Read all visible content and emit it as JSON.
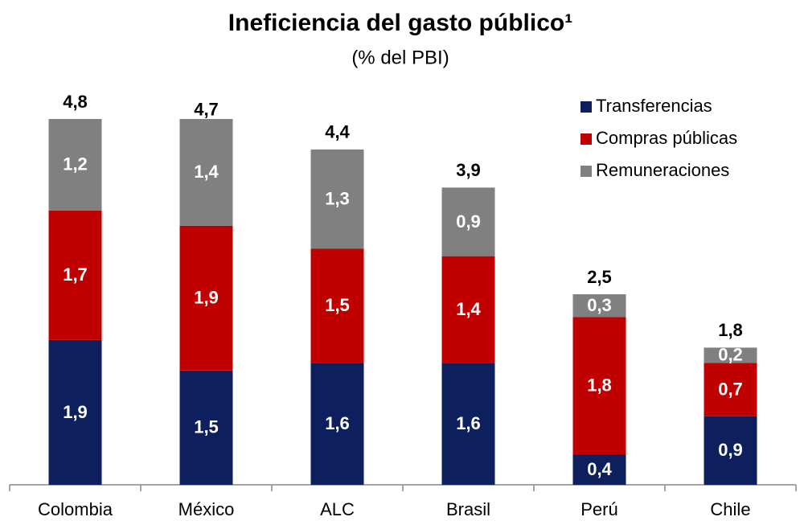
{
  "chart_data": {
    "type": "stacked-bar",
    "title": "Ineficiencia del gasto público¹",
    "subtitle": "(% del PBI)",
    "categories": [
      "Colombia",
      "México",
      "ALC",
      "Brasil",
      "Perú",
      "Chile"
    ],
    "series": [
      {
        "name": "Transferencias",
        "color": "#0d1f5c",
        "values": [
          1.9,
          1.5,
          1.6,
          1.6,
          0.4,
          0.9
        ],
        "value_labels": [
          "1,9",
          "1,5",
          "1,6",
          "1,6",
          "0,4",
          "0,9"
        ]
      },
      {
        "name": "Compras públicas",
        "color": "#c00000",
        "values": [
          1.7,
          1.9,
          1.5,
          1.4,
          1.8,
          0.7
        ],
        "value_labels": [
          "1,7",
          "1,9",
          "1,5",
          "1,4",
          "1,8",
          "0,7"
        ]
      },
      {
        "name": "Remuneraciones",
        "color": "#808080",
        "values": [
          1.2,
          1.4,
          1.3,
          0.9,
          0.3,
          0.2
        ],
        "value_labels": [
          "1,2",
          "1,4",
          "1,3",
          "0,9",
          "0,3",
          "0,2"
        ]
      }
    ],
    "totals": {
      "values": [
        4.8,
        4.7,
        4.4,
        3.9,
        2.5,
        1.8
      ],
      "value_labels": [
        "4,8",
        "4,7",
        "4,4",
        "3,9",
        "2,5",
        "1,8"
      ]
    },
    "legend": "upper right"
  }
}
